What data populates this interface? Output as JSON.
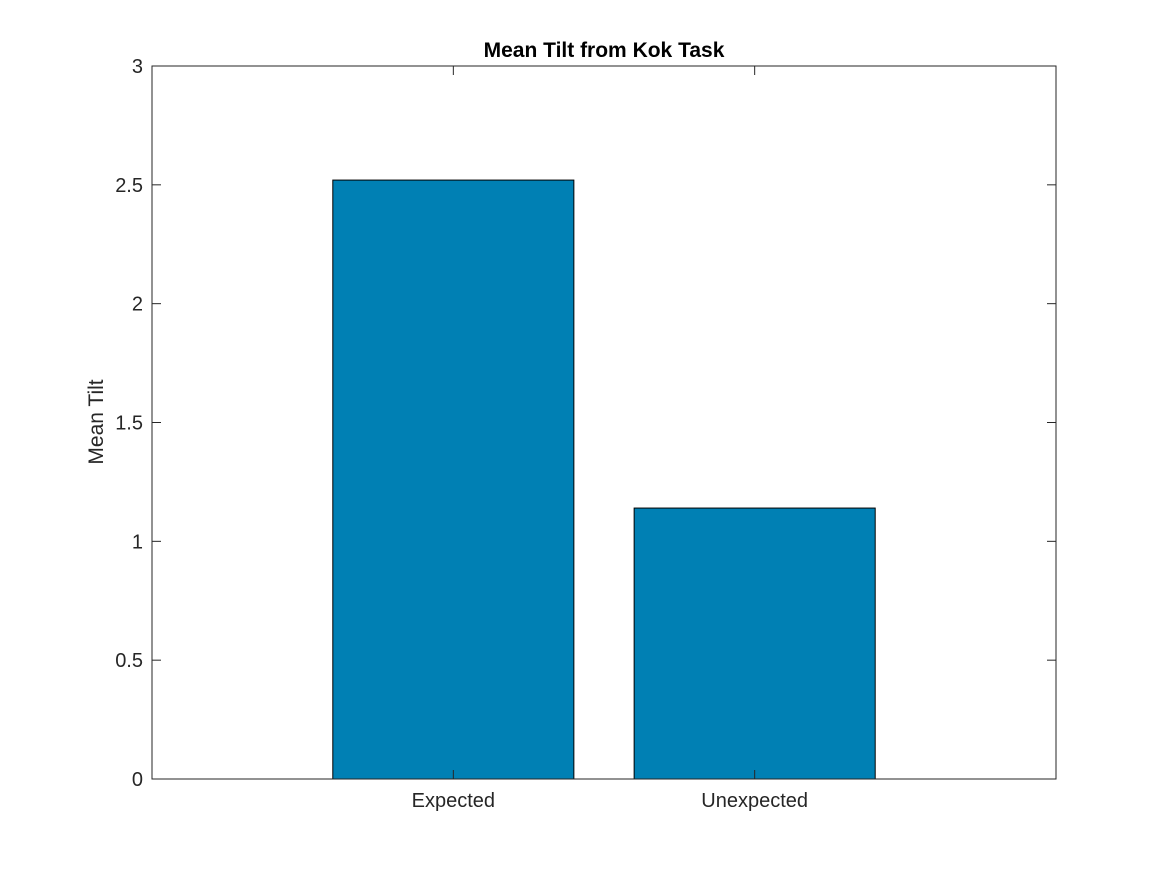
{
  "chart_data": {
    "type": "bar",
    "title": "Mean Tilt from Kok Task",
    "xlabel": "",
    "ylabel": "Mean Tilt",
    "categories": [
      "Expected",
      "Unexpected"
    ],
    "values": [
      2.52,
      1.14
    ],
    "ylim": [
      0,
      3
    ],
    "yticks": [
      0,
      0.5,
      1,
      1.5,
      2,
      2.5,
      3
    ],
    "ytick_labels": [
      "0",
      "0.5",
      "1",
      "1.5",
      "2",
      "2.5",
      "3"
    ],
    "xlim": [
      0,
      3
    ],
    "grid": false,
    "bar_color": "#0080B4",
    "bar_edge_color": "#000000",
    "axis_color": "#262626"
  }
}
